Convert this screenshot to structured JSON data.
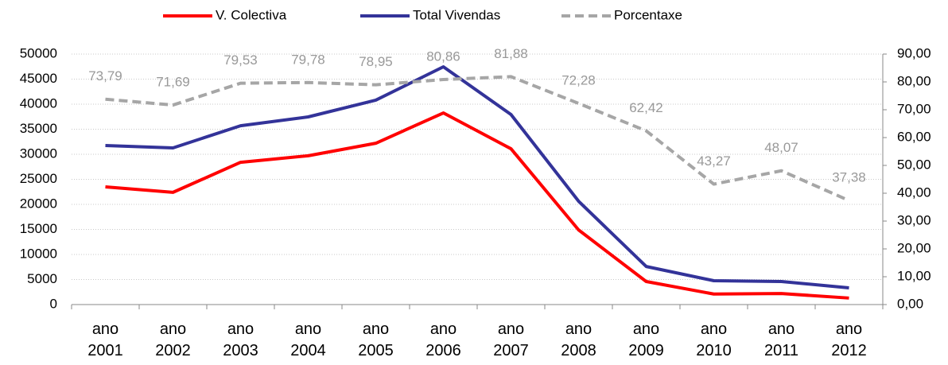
{
  "chart_data": {
    "type": "line",
    "categories": [
      "ano 2001",
      "ano 2002",
      "ano 2003",
      "ano 2004",
      "ano 2005",
      "ano 2006",
      "ano 2007",
      "ano 2008",
      "ano 2009",
      "ano 2010",
      "ano 2011",
      "ano 2012"
    ],
    "series": [
      {
        "name": "V. Colectiva",
        "color": "#ff0000",
        "values": [
          23500,
          22400,
          28400,
          29700,
          32200,
          38250,
          31100,
          14900,
          4600,
          2100,
          2200,
          1300
        ]
      },
      {
        "name": "Total Vivendas",
        "color": "#333399",
        "values": [
          31750,
          31270,
          35700,
          37460,
          40800,
          47460,
          37940,
          20630,
          7600,
          4760,
          4600,
          3330
        ]
      },
      {
        "name": "Porcentaxe",
        "color": "#a6a6a6",
        "dashed": true,
        "axis": "y2",
        "values": [
          73.79,
          71.69,
          79.53,
          79.78,
          78.95,
          80.86,
          81.88,
          72.28,
          62.42,
          43.27,
          48.07,
          37.38
        ],
        "value_labels": [
          "73,79",
          "71,69",
          "79,53",
          "79,78",
          "78,95",
          "80,86",
          "81,88",
          "72,28",
          "62,42",
          "43,27",
          "48,07",
          "37,38"
        ]
      }
    ],
    "ylim": [
      0,
      50000
    ],
    "yticks": [
      0,
      5000,
      10000,
      15000,
      20000,
      25000,
      30000,
      35000,
      40000,
      45000,
      50000
    ],
    "y2lim": [
      0,
      90
    ],
    "y2ticks": [
      {
        "value": 0,
        "label": "0,00"
      },
      {
        "value": 10,
        "label": "10,00"
      },
      {
        "value": 20,
        "label": "20,00"
      },
      {
        "value": 30,
        "label": "30,00"
      },
      {
        "value": 40,
        "label": "40,00"
      },
      {
        "value": 50,
        "label": "50,00"
      },
      {
        "value": 60,
        "label": "60,00"
      },
      {
        "value": 70,
        "label": "70,00"
      },
      {
        "value": 80,
        "label": "80,00"
      },
      {
        "value": 90,
        "label": "90,00"
      }
    ],
    "grid": true,
    "legend": "top"
  }
}
